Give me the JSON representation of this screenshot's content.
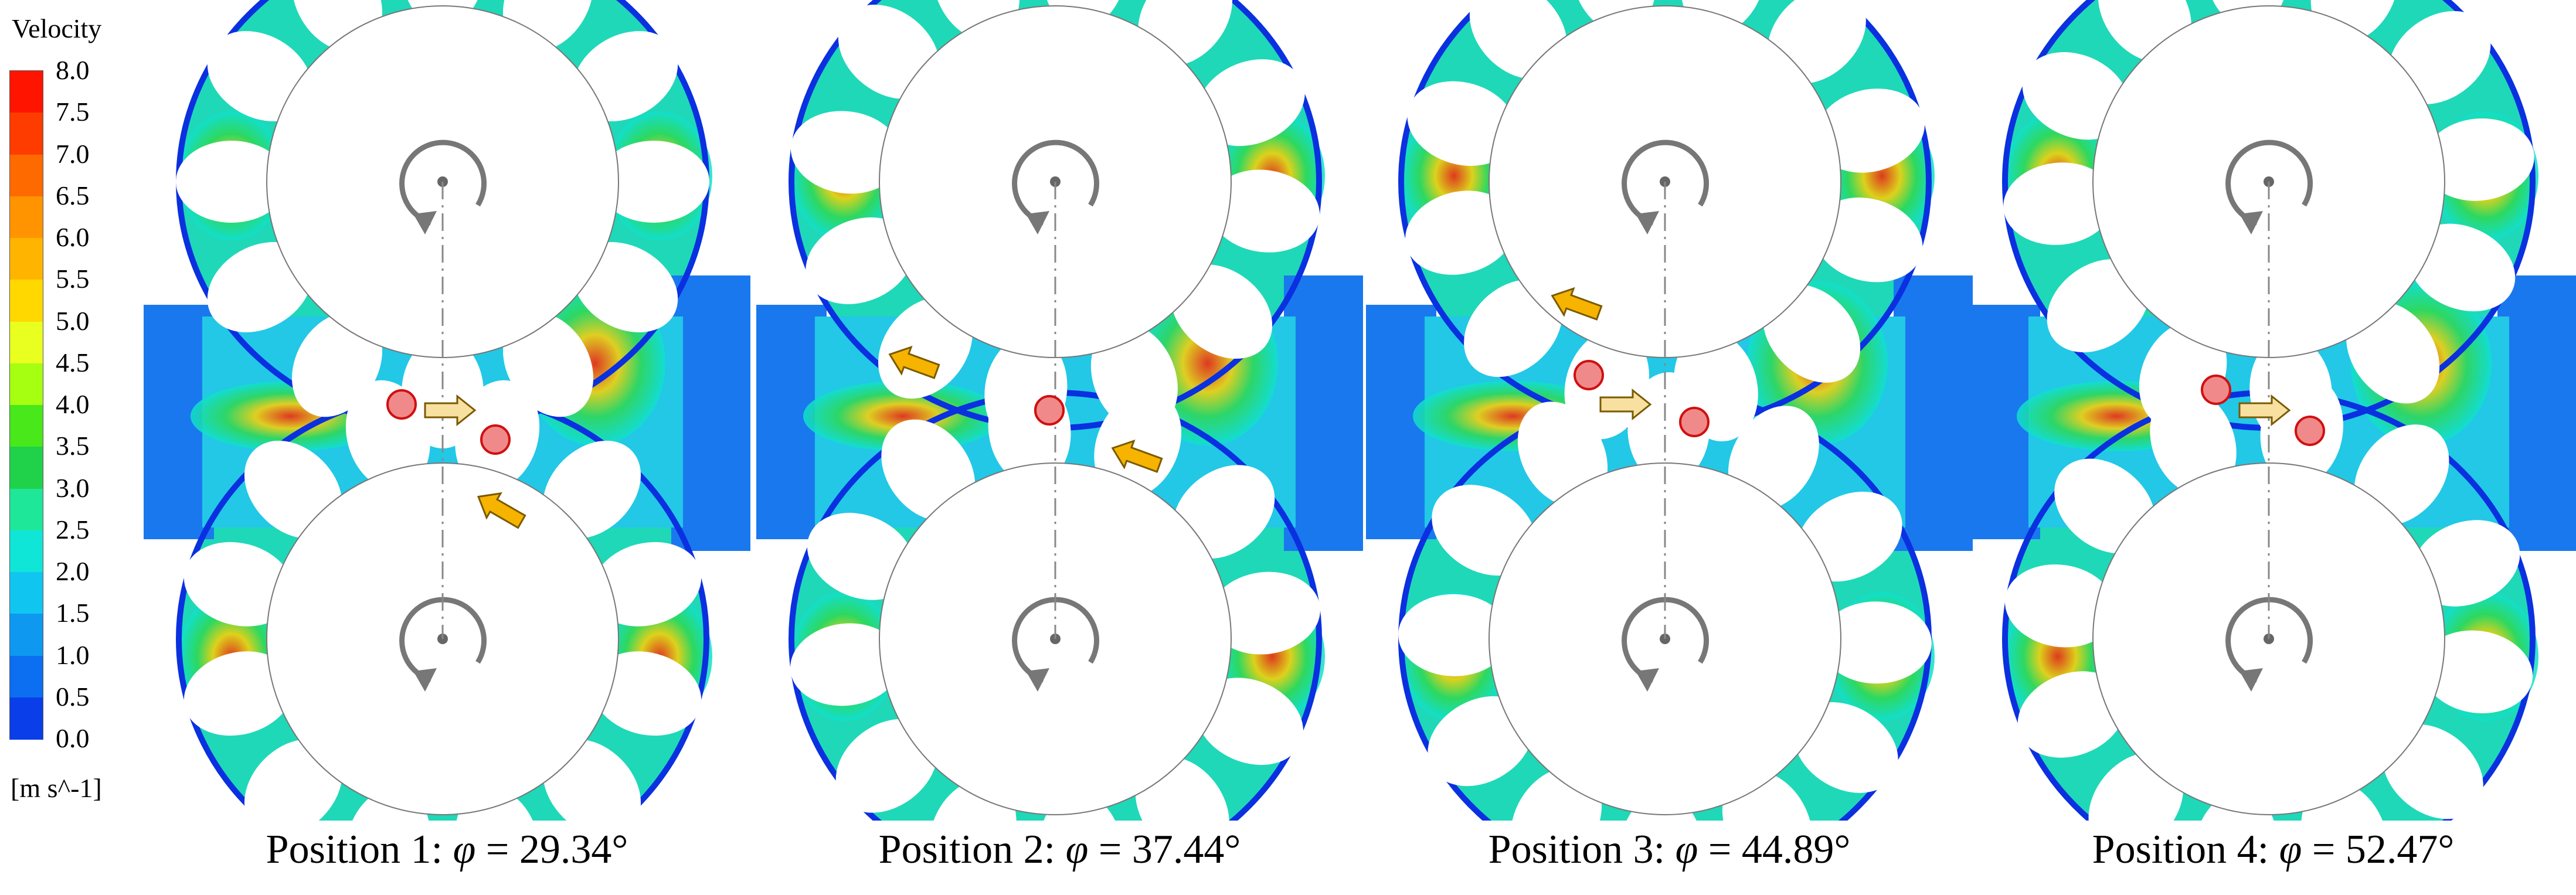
{
  "legend": {
    "title": "Velocity",
    "unit": "[m s^-1]",
    "ticks": [
      "8.0",
      "7.5",
      "7.0",
      "6.5",
      "6.0",
      "5.5",
      "5.0",
      "4.5",
      "4.0",
      "3.5",
      "3.0",
      "2.5",
      "2.0",
      "1.5",
      "1.0",
      "0.5",
      "0.0"
    ],
    "colors": [
      "#ff1400",
      "#ff3c00",
      "#ff6a00",
      "#ff9400",
      "#ffb400",
      "#ffd800",
      "#e8ff20",
      "#a6ff10",
      "#48e81a",
      "#1fd24a",
      "#1ee79a",
      "#10e6d8",
      "#10c6f0",
      "#0e98f0",
      "#0c6ef0",
      "#0a3ee8",
      "#0012e0"
    ]
  },
  "panels": [
    {
      "label": "Position 1: ",
      "symbol": "φ",
      "value": " = 29.34°"
    },
    {
      "label": "Position 2: ",
      "symbol": "φ",
      "value": " = 37.44°"
    },
    {
      "label": "Position 3: ",
      "symbol": "φ",
      "value": " = 44.89°"
    },
    {
      "label": "Position 4: ",
      "symbol": "φ",
      "value": " = 52.47°"
    }
  ]
}
